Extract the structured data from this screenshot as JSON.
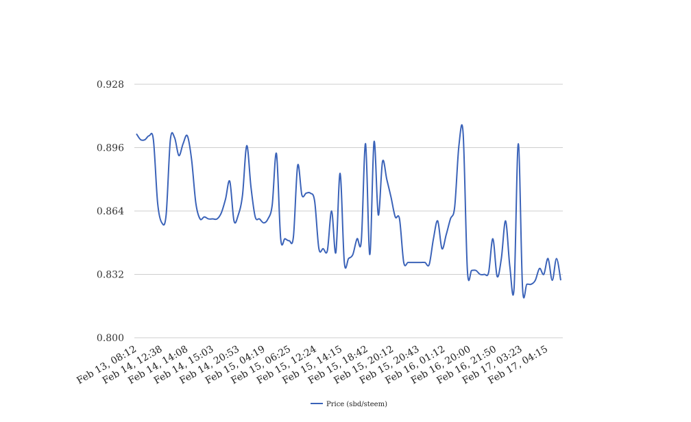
{
  "chart_data": {
    "type": "line",
    "ylim": [
      0.8,
      0.928
    ],
    "y_ticks": [
      "0.800",
      "0.832",
      "0.864",
      "0.896",
      "0.928"
    ],
    "x_tick_labels": [
      "Feb 13, 08:12",
      "Feb 14, 12:38",
      "Feb 14, 14:08",
      "Feb 14, 15:03",
      "Feb 14, 20:53",
      "Feb 15, 04:19",
      "Feb 15, 06:25",
      "Feb 15, 12:24",
      "Feb 15, 14:15",
      "Feb 15, 18:42",
      "Feb 15, 20:12",
      "Feb 15, 20:43",
      "Feb 16, 01:12",
      "Feb 16, 20:00",
      "Feb 16, 21:50",
      "Feb 17, 03:23",
      "Feb 17, 04:15"
    ],
    "grid": true,
    "legend_position": "bottom-center",
    "series": [
      {
        "name": "Price (sbd/steem)",
        "color": "#3a62b8",
        "values": [
          0.903,
          0.9,
          0.9,
          0.902,
          0.9,
          0.868,
          0.858,
          0.862,
          0.9,
          0.901,
          0.892,
          0.898,
          0.902,
          0.89,
          0.868,
          0.86,
          0.861,
          0.86,
          0.86,
          0.86,
          0.863,
          0.87,
          0.879,
          0.859,
          0.862,
          0.872,
          0.897,
          0.876,
          0.861,
          0.86,
          0.858,
          0.86,
          0.867,
          0.893,
          0.85,
          0.85,
          0.849,
          0.851,
          0.887,
          0.872,
          0.873,
          0.873,
          0.869,
          0.845,
          0.845,
          0.844,
          0.864,
          0.843,
          0.883,
          0.838,
          0.84,
          0.842,
          0.85,
          0.849,
          0.898,
          0.842,
          0.899,
          0.862,
          0.889,
          0.88,
          0.871,
          0.861,
          0.86,
          0.838,
          0.838,
          0.838,
          0.838,
          0.838,
          0.838,
          0.837,
          0.85,
          0.859,
          0.845,
          0.852,
          0.86,
          0.866,
          0.897,
          0.903,
          0.834,
          0.834,
          0.834,
          0.832,
          0.832,
          0.833,
          0.85,
          0.831,
          0.84,
          0.859,
          0.836,
          0.825,
          0.898,
          0.825,
          0.827,
          0.827,
          0.829,
          0.835,
          0.832,
          0.84,
          0.829,
          0.84,
          0.829
        ]
      }
    ]
  }
}
